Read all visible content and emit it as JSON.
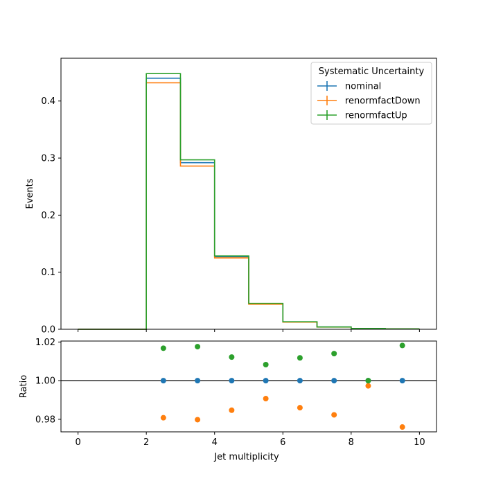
{
  "chart_data": {
    "type": "line",
    "main": {
      "ylabel": "Events",
      "xlim": [
        -0.5,
        10.5
      ],
      "ylim": [
        0,
        0.475
      ],
      "yticks": [
        0.0,
        0.1,
        0.2,
        0.3,
        0.4
      ],
      "ytick_labels": [
        "0.0",
        "0.1",
        "0.2",
        "0.3",
        "0.4"
      ],
      "legend": {
        "title": "Systematic Uncertainty",
        "placement": "top-right"
      },
      "bin_edges": [
        0,
        1,
        2,
        3,
        4,
        5,
        6,
        7,
        8,
        9,
        10
      ],
      "series": [
        {
          "name": "nominal",
          "color": "#1f77b4",
          "values": [
            0.0,
            0.0,
            0.44,
            0.292,
            0.127,
            0.045,
            0.013,
            0.004,
            0.0015,
            0.0007
          ]
        },
        {
          "name": "renormfactDown",
          "color": "#ff7f0e",
          "values": [
            0.0,
            0.0,
            0.432,
            0.286,
            0.125,
            0.044,
            0.0125,
            0.0039,
            0.00145,
            0.00068
          ]
        },
        {
          "name": "renormfactUp",
          "color": "#2ca02c",
          "values": [
            0.0,
            0.0,
            0.448,
            0.297,
            0.1285,
            0.0454,
            0.01315,
            0.00406,
            0.0015,
            0.00071
          ]
        }
      ]
    },
    "ratio": {
      "ylabel": "Ratio",
      "xlabel": "Jet multiplicity",
      "ylim": [
        0.9735,
        1.0205
      ],
      "yticks": [
        0.98,
        1.0,
        1.02
      ],
      "ytick_labels": [
        "0.98",
        "1.00",
        "1.02"
      ],
      "xticks": [
        0,
        2,
        4,
        6,
        8,
        10
      ],
      "xtick_labels": [
        "0",
        "2",
        "4",
        "6",
        "8",
        "10"
      ],
      "reference_line": 1.0,
      "x": [
        2.5,
        3.5,
        4.5,
        5.5,
        6.5,
        7.5,
        8.5,
        9.5
      ],
      "series": [
        {
          "name": "nominal",
          "color": "#1f77b4",
          "values": [
            1.0,
            1.0,
            1.0,
            1.0,
            1.0,
            1.0,
            1.0,
            1.0
          ]
        },
        {
          "name": "renormfactDown",
          "color": "#ff7f0e",
          "values": [
            0.9808,
            0.9798,
            0.9847,
            0.9907,
            0.986,
            0.9823,
            0.9973,
            0.976
          ]
        },
        {
          "name": "renormfactUp",
          "color": "#2ca02c",
          "values": [
            1.0168,
            1.0176,
            1.0122,
            1.0083,
            1.0118,
            1.014,
            1.0,
            1.0182
          ]
        }
      ]
    }
  }
}
